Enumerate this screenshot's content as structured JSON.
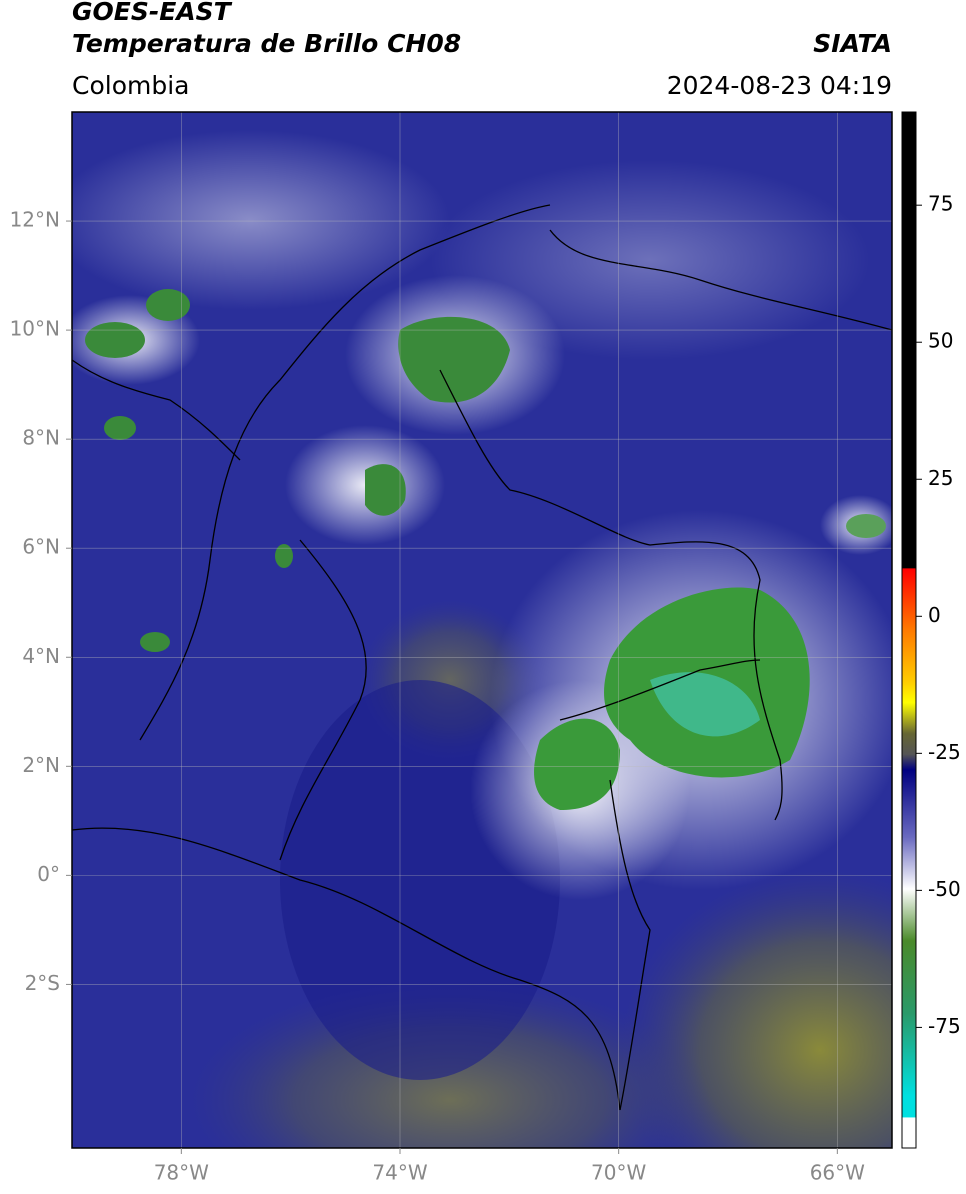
{
  "header": {
    "title_line1": "GOES-EAST",
    "title_line2": "Temperatura de Brillo CH08",
    "region": "Colombia",
    "source": "SIATA",
    "timestamp": "2024-08-23 04:19"
  },
  "map": {
    "xlim": [
      -80,
      -65
    ],
    "ylim": [
      -5,
      14
    ],
    "xticks": [
      {
        "value": -78,
        "label": "78°W"
      },
      {
        "value": -74,
        "label": "74°W"
      },
      {
        "value": -70,
        "label": "70°W"
      },
      {
        "value": -66,
        "label": "66°W"
      }
    ],
    "yticks": [
      {
        "value": 12,
        "label": "12°N"
      },
      {
        "value": 10,
        "label": "10°N"
      },
      {
        "value": 8,
        "label": "8°N"
      },
      {
        "value": 6,
        "label": "6°N"
      },
      {
        "value": 4,
        "label": "4°N"
      },
      {
        "value": 2,
        "label": "2°N"
      },
      {
        "value": 0,
        "label": "0°"
      },
      {
        "value": -2,
        "label": "2°S"
      }
    ],
    "grid": true
  },
  "colorbar": {
    "lim": [
      -97,
      92
    ],
    "ticks": [
      75,
      50,
      25,
      0,
      -25,
      -50,
      -75
    ]
  }
}
